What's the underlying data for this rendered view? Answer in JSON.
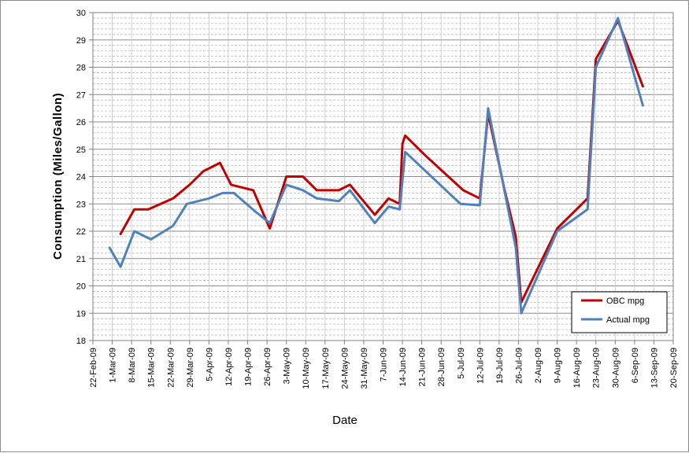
{
  "chart_data": {
    "type": "line",
    "title": "",
    "xlabel": "Date",
    "ylabel": "Consumption  (Miles/Gallon)",
    "ylim": [
      18,
      30
    ],
    "y_major_step": 1,
    "y_minor_step": 0.2,
    "xlim": [
      "2009-02-22",
      "2009-09-20"
    ],
    "x_tick_labels": [
      "22-Feb-09",
      "1-Mar-09",
      "8-Mar-09",
      "15-Mar-09",
      "22-Mar-09",
      "29-Mar-09",
      "5-Apr-09",
      "12-Apr-09",
      "19-Apr-09",
      "26-Apr-09",
      "3-May-09",
      "10-May-09",
      "17-May-09",
      "24-May-09",
      "31-May-09",
      "7-Jun-09",
      "14-Jun-09",
      "21-Jun-09",
      "28-Jun-09",
      "5-Jul-09",
      "12-Jul-09",
      "19-Jul-09",
      "26-Jul-09",
      "2-Aug-09",
      "9-Aug-09",
      "16-Aug-09",
      "23-Aug-09",
      "30-Aug-09",
      "6-Sep-09",
      "13-Sep-09",
      "20-Sep-09"
    ],
    "y_tick_labels": [
      "18",
      "19",
      "20",
      "21",
      "22",
      "23",
      "24",
      "25",
      "26",
      "27",
      "28",
      "29",
      "30"
    ],
    "grid": true,
    "legend_position": "bottom-right",
    "series": [
      {
        "name": "OBC mpg",
        "color": "#c00000",
        "points": [
          [
            "2009-03-04",
            21.9
          ],
          [
            "2009-03-09",
            22.8
          ],
          [
            "2009-03-14",
            22.8
          ],
          [
            "2009-03-23",
            23.2
          ],
          [
            "2009-03-29",
            23.7
          ],
          [
            "2009-04-03",
            24.2
          ],
          [
            "2009-04-09",
            24.5
          ],
          [
            "2009-04-13",
            23.7
          ],
          [
            "2009-04-21",
            23.5
          ],
          [
            "2009-04-27",
            22.1
          ],
          [
            "2009-05-03",
            24.0
          ],
          [
            "2009-05-09",
            24.0
          ],
          [
            "2009-05-14",
            23.5
          ],
          [
            "2009-05-22",
            23.5
          ],
          [
            "2009-05-26",
            23.7
          ],
          [
            "2009-06-04",
            22.6
          ],
          [
            "2009-06-09",
            23.2
          ],
          [
            "2009-06-13",
            23.0
          ],
          [
            "2009-06-14",
            25.2
          ],
          [
            "2009-06-15",
            25.5
          ],
          [
            "2009-06-22",
            24.8
          ],
          [
            "2009-07-06",
            23.5
          ],
          [
            "2009-07-12",
            23.2
          ],
          [
            "2009-07-15",
            26.3
          ],
          [
            "2009-07-21",
            23.5
          ],
          [
            "2009-07-25",
            21.8
          ],
          [
            "2009-07-27",
            19.4
          ],
          [
            "2009-08-09",
            22.1
          ],
          [
            "2009-08-20",
            23.2
          ],
          [
            "2009-08-23",
            28.3
          ],
          [
            "2009-08-31",
            29.7
          ],
          [
            "2009-09-09",
            27.3
          ]
        ]
      },
      {
        "name": "Actual mpg",
        "color": "#4f81bd",
        "points": [
          [
            "2009-02-28",
            21.4
          ],
          [
            "2009-03-04",
            20.7
          ],
          [
            "2009-03-09",
            22.0
          ],
          [
            "2009-03-15",
            21.7
          ],
          [
            "2009-03-23",
            22.2
          ],
          [
            "2009-03-28",
            23.0
          ],
          [
            "2009-04-05",
            23.2
          ],
          [
            "2009-04-10",
            23.4
          ],
          [
            "2009-04-14",
            23.4
          ],
          [
            "2009-04-22",
            22.7
          ],
          [
            "2009-04-27",
            22.3
          ],
          [
            "2009-05-03",
            23.7
          ],
          [
            "2009-05-09",
            23.5
          ],
          [
            "2009-05-14",
            23.2
          ],
          [
            "2009-05-22",
            23.1
          ],
          [
            "2009-05-26",
            23.5
          ],
          [
            "2009-06-04",
            22.3
          ],
          [
            "2009-06-09",
            22.9
          ],
          [
            "2009-06-13",
            22.8
          ],
          [
            "2009-06-15",
            24.9
          ],
          [
            "2009-07-05",
            23.0
          ],
          [
            "2009-07-12",
            22.95
          ],
          [
            "2009-07-15",
            26.5
          ],
          [
            "2009-07-25",
            21.4
          ],
          [
            "2009-07-27",
            19.0
          ],
          [
            "2009-08-09",
            22.0
          ],
          [
            "2009-08-20",
            22.8
          ],
          [
            "2009-08-23",
            28.0
          ],
          [
            "2009-08-31",
            29.8
          ],
          [
            "2009-09-09",
            26.6
          ]
        ]
      }
    ]
  }
}
